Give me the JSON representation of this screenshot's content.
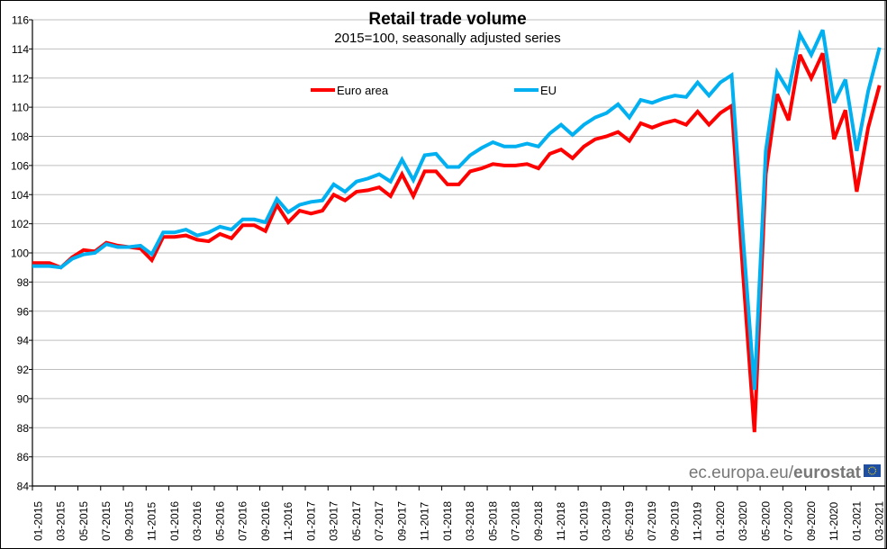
{
  "chart_data": {
    "type": "line",
    "title": "Retail trade volume",
    "subtitle": "2015=100, seasonally adjusted series",
    "xlabel": "",
    "ylabel": "",
    "ylim": [
      84,
      116
    ],
    "yticks": [
      84,
      86,
      88,
      90,
      92,
      94,
      96,
      98,
      100,
      102,
      104,
      106,
      108,
      110,
      112,
      114,
      116
    ],
    "grid": "horizontal",
    "legend_position": "top",
    "x": [
      "01-2015",
      "02-2015",
      "03-2015",
      "04-2015",
      "05-2015",
      "06-2015",
      "07-2015",
      "08-2015",
      "09-2015",
      "10-2015",
      "11-2015",
      "12-2015",
      "01-2016",
      "02-2016",
      "03-2016",
      "04-2016",
      "05-2016",
      "06-2016",
      "07-2016",
      "08-2016",
      "09-2016",
      "10-2016",
      "11-2016",
      "12-2016",
      "01-2017",
      "02-2017",
      "03-2017",
      "04-2017",
      "05-2017",
      "06-2017",
      "07-2017",
      "08-2017",
      "09-2017",
      "10-2017",
      "11-2017",
      "12-2017",
      "01-2018",
      "02-2018",
      "03-2018",
      "04-2018",
      "05-2018",
      "06-2018",
      "07-2018",
      "08-2018",
      "09-2018",
      "10-2018",
      "11-2018",
      "12-2018",
      "01-2019",
      "02-2019",
      "03-2019",
      "04-2019",
      "05-2019",
      "06-2019",
      "07-2019",
      "08-2019",
      "09-2019",
      "10-2019",
      "11-2019",
      "12-2019",
      "01-2020",
      "02-2020",
      "03-2020",
      "04-2020",
      "05-2020",
      "06-2020",
      "07-2020",
      "08-2020",
      "09-2020",
      "10-2020",
      "11-2020",
      "12-2020",
      "01-2021",
      "02-2021",
      "03-2021"
    ],
    "xtick_labels": [
      "01-2015",
      "03-2015",
      "05-2015",
      "07-2015",
      "09-2015",
      "11-2015",
      "01-2016",
      "03-2016",
      "05-2016",
      "07-2016",
      "09-2016",
      "11-2016",
      "01-2017",
      "03-2017",
      "05-2017",
      "07-2017",
      "09-2017",
      "11-2017",
      "01-2018",
      "03-2018",
      "05-2018",
      "07-2018",
      "09-2018",
      "11-2018",
      "01-2019",
      "03-2019",
      "05-2019",
      "07-2019",
      "09-2019",
      "11-2019",
      "01-2020",
      "03-2020",
      "05-2020",
      "07-2020",
      "09-2020",
      "11-2020",
      "01-2021",
      "03-2021"
    ],
    "series": [
      {
        "name": "Euro area",
        "color": "#ff0000",
        "values": [
          99.3,
          99.3,
          99.0,
          99.7,
          100.2,
          100.1,
          100.7,
          100.5,
          100.4,
          100.3,
          99.5,
          101.1,
          101.1,
          101.2,
          100.9,
          100.8,
          101.3,
          101.0,
          101.9,
          101.9,
          101.5,
          103.3,
          102.1,
          102.9,
          102.7,
          102.9,
          104.0,
          103.6,
          104.2,
          104.3,
          104.5,
          103.9,
          105.4,
          103.9,
          105.6,
          105.6,
          104.7,
          104.7,
          105.6,
          105.8,
          106.1,
          106.0,
          106.0,
          106.1,
          105.8,
          106.8,
          107.1,
          106.5,
          107.3,
          107.8,
          108.0,
          108.3,
          107.7,
          108.9,
          108.6,
          108.9,
          109.1,
          108.8,
          109.7,
          108.8,
          109.6,
          110.1,
          98.5,
          87.7,
          105.4,
          110.9,
          109.1,
          113.6,
          112.0,
          113.7,
          107.8,
          109.8,
          104.2,
          108.6,
          111.5
        ]
      },
      {
        "name": "EU",
        "color": "#00b0f0",
        "values": [
          99.1,
          99.1,
          99.0,
          99.6,
          99.9,
          100.0,
          100.6,
          100.4,
          100.4,
          100.5,
          99.9,
          101.4,
          101.4,
          101.6,
          101.2,
          101.4,
          101.8,
          101.6,
          102.3,
          102.3,
          102.1,
          103.7,
          102.8,
          103.3,
          103.5,
          103.6,
          104.7,
          104.2,
          104.9,
          105.1,
          105.4,
          104.9,
          106.4,
          105.0,
          106.7,
          106.8,
          105.9,
          105.9,
          106.7,
          107.2,
          107.6,
          107.3,
          107.3,
          107.5,
          107.3,
          108.2,
          108.8,
          108.1,
          108.8,
          109.3,
          109.6,
          110.2,
          109.3,
          110.5,
          110.3,
          110.6,
          110.8,
          110.7,
          111.7,
          110.8,
          111.7,
          112.2,
          101.0,
          90.6,
          107.0,
          112.4,
          111.1,
          115.0,
          113.6,
          115.3,
          110.3,
          111.9,
          107.0,
          111.1,
          114.1
        ]
      }
    ]
  },
  "watermark": {
    "site": "ec.europa.eu/",
    "brand": "eurostat",
    "icon": "eu-flag-icon"
  }
}
